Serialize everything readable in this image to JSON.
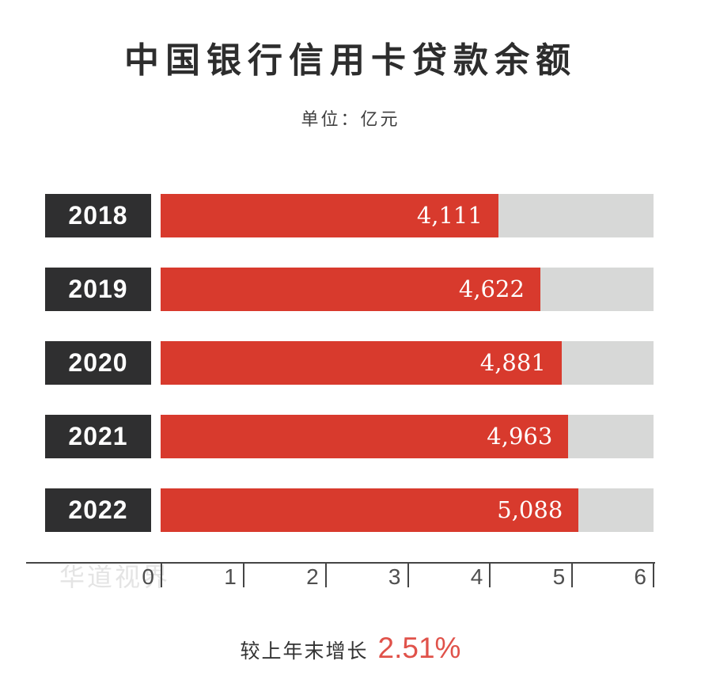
{
  "chart_data": {
    "type": "bar",
    "orientation": "horizontal",
    "title": "中国银行信用卡贷款余额",
    "subtitle": "单位：亿元",
    "categories": [
      "2018",
      "2019",
      "2020",
      "2021",
      "2022"
    ],
    "values": [
      4111,
      4622,
      4881,
      4963,
      5088
    ],
    "value_labels": [
      "4,111",
      "4,622",
      "4,881",
      "4,963",
      "5,088"
    ],
    "xlim": [
      0,
      6
    ],
    "x_tick_labels": [
      "0",
      "1",
      "2",
      "3",
      "4",
      "5",
      "6"
    ],
    "axis_max_value": 6000,
    "grid": false,
    "legend": false
  },
  "watermark": "华道视界",
  "footer": {
    "label": "较上年末增长",
    "value": "2.51%"
  },
  "colors": {
    "bar_fill": "#d83a2d",
    "bar_track": "#d7d8d7",
    "category_box": "#2f2f30",
    "title_text": "#2d2d2d",
    "axis_line": "#454545",
    "tick_label": "#4f4f4f",
    "watermark": "#e4e4e4",
    "footer_value": "#e0524a",
    "bar_value_text": "#ffffff"
  }
}
